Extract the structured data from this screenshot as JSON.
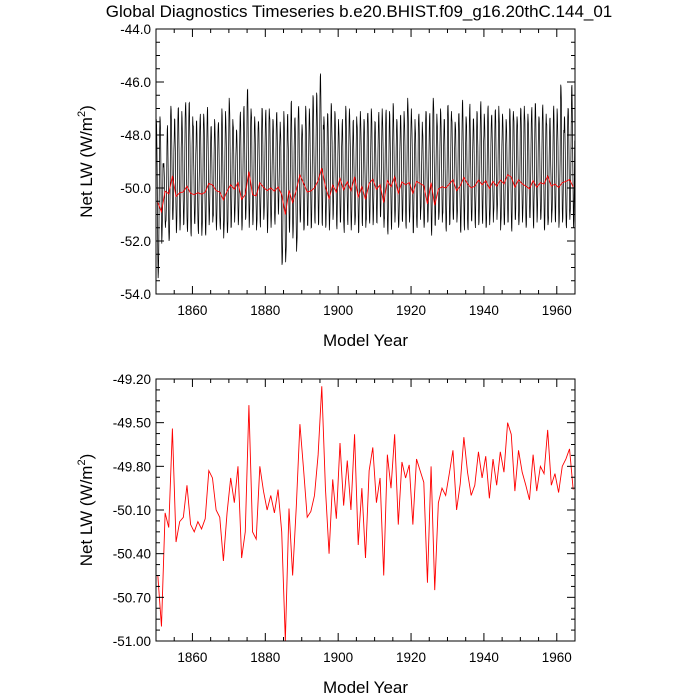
{
  "title": "Global Diagnostics Timeseries b.e20.BHIST.f09_g16.20thC.144_01",
  "colors": {
    "monthly": "#000000",
    "annual": "#ff0000"
  },
  "chart_data": [
    {
      "type": "line",
      "title": "Global Diagnostics Timeseries b.e20.BHIST.f09_g16.20thC.144_01",
      "xlabel": "Model Year",
      "ylabel_main": "Net LW (W/m",
      "ylabel_sup": "2",
      "ylabel_end": ")",
      "xlim": [
        1850,
        1965
      ],
      "ylim": [
        -54.0,
        -44.0
      ],
      "xticks": [
        1860,
        1880,
        1900,
        1920,
        1940,
        1960
      ],
      "yticks": [
        -54.0,
        -52.0,
        -50.0,
        -48.0,
        -46.0,
        -44.0
      ],
      "xtick_labels": [
        "1860",
        "1880",
        "1900",
        "1920",
        "1940",
        "1960"
      ],
      "ytick_labels": [
        "-54.0",
        "-52.0",
        "-50.0",
        "-48.0",
        "-46.0",
        "-44.0"
      ],
      "grid": false,
      "series": [
        {
          "kind": "monthly",
          "color": "#000000",
          "x_start": 1850.0,
          "x_step": 0.0833333,
          "annual_max": [
            -47.4,
            -47.3,
            -49.1,
            -47.8,
            -46.9,
            -47.4,
            -47.0,
            -47.1,
            -46.9,
            -46.8,
            -47.3,
            -47.5,
            -47.4,
            -47.2,
            -47.1,
            -47.7,
            -47.4,
            -47.6,
            -47.0,
            -47.1,
            -46.6,
            -47.4,
            -47.8,
            -47.3,
            -47.0,
            -46.3,
            -47.0,
            -47.3,
            -47.5,
            -47.0,
            -47.2,
            -47.0,
            -47.4,
            -47.2,
            -47.5,
            -47.1,
            -47.3,
            -46.8,
            -47.4,
            -47.0,
            -47.6,
            -46.9,
            -47.0,
            -46.5,
            -46.4,
            -45.8,
            -47.3,
            -47.2,
            -46.8,
            -47.1,
            -47.4,
            -47.6,
            -46.9,
            -47.0,
            -47.5,
            -47.3,
            -47.1,
            -47.4,
            -47.2,
            -47.0,
            -47.5,
            -47.3,
            -47.0,
            -47.2,
            -47.1,
            -46.8,
            -47.4,
            -47.3,
            -47.1,
            -46.6,
            -47.0,
            -47.4,
            -47.3,
            -47.5,
            -47.1,
            -47.3,
            -46.6,
            -47.2,
            -47.0,
            -47.4,
            -46.9,
            -47.1,
            -47.5,
            -47.2,
            -46.8,
            -47.3,
            -47.0,
            -47.4,
            -47.1,
            -46.9,
            -47.2,
            -47.0,
            -47.3,
            -47.1,
            -46.9,
            -47.2,
            -47.4,
            -47.0,
            -47.1,
            -47.3,
            -47.0,
            -46.9,
            -47.2,
            -47.1,
            -46.8,
            -47.3,
            -47.0,
            -47.2,
            -47.4,
            -47.1,
            -47.0,
            -46.1,
            -47.3,
            -47.0,
            -46.2
          ],
          "annual_min": [
            -53.4,
            -52.1,
            -51.5,
            -52.0,
            -51.2,
            -51.7,
            -51.6,
            -51.4,
            -51.5,
            -51.7,
            -51.3,
            -51.6,
            -51.8,
            -51.7,
            -51.4,
            -51.3,
            -51.6,
            -51.4,
            -51.9,
            -51.7,
            -51.5,
            -51.3,
            -51.4,
            -51.6,
            -51.2,
            -51.5,
            -51.4,
            -51.6,
            -51.3,
            -51.2,
            -51.7,
            -51.5,
            -51.2,
            -51.0,
            -52.9,
            -52.8,
            -51.5,
            -51.9,
            -52.4,
            -51.3,
            -51.6,
            -51.4,
            -51.5,
            -51.2,
            -51.4,
            -51.3,
            -51.5,
            -51.6,
            -51.2,
            -51.4,
            -51.3,
            -51.5,
            -51.2,
            -51.6,
            -51.4,
            -51.7,
            -51.3,
            -51.5,
            -51.2,
            -51.4,
            -51.3,
            -51.1,
            -51.5,
            -51.6,
            -51.4,
            -51.3,
            -51.5,
            -51.2,
            -51.4,
            -51.3,
            -51.7,
            -51.4,
            -51.2,
            -51.5,
            -51.3,
            -51.6,
            -51.4,
            -51.2,
            -51.3,
            -51.5,
            -51.4,
            -51.2,
            -51.3,
            -51.6,
            -51.4,
            -51.5,
            -51.2,
            -51.3,
            -51.4,
            -51.2,
            -51.5,
            -51.4,
            -51.3,
            -51.2,
            -51.6,
            -51.4,
            -51.3,
            -51.5,
            -51.2,
            -51.4,
            -51.3,
            -51.5,
            -51.1,
            -51.4,
            -51.3,
            -51.2,
            -51.5,
            -51.4,
            -51.3,
            -51.2,
            -51.5,
            -51.3,
            -51.4,
            -51.2,
            -51.5
          ]
        },
        {
          "kind": "annual",
          "color": "#ff0000",
          "x_start": 1850.5,
          "x_step": 1.0,
          "values": [
            -50.55,
            -50.9,
            -50.12,
            -50.22,
            -49.54,
            -50.32,
            -50.18,
            -50.15,
            -49.93,
            -50.2,
            -50.25,
            -50.18,
            -50.23,
            -50.16,
            -49.83,
            -49.88,
            -50.1,
            -50.15,
            -50.45,
            -50.12,
            -49.88,
            -50.05,
            -49.8,
            -50.43,
            -50.25,
            -49.38,
            -50.25,
            -50.3,
            -49.8,
            -49.97,
            -50.1,
            -50.0,
            -50.12,
            -49.96,
            -50.25,
            -51.0,
            -50.09,
            -50.55,
            -50.08,
            -49.51,
            -49.82,
            -50.15,
            -50.11,
            -50.0,
            -49.72,
            -49.25,
            -49.95,
            -50.4,
            -49.89,
            -50.16,
            -49.64,
            -50.07,
            -49.76,
            -50.1,
            -49.58,
            -50.34,
            -49.95,
            -50.43,
            -49.83,
            -49.67,
            -50.05,
            -49.88,
            -50.55,
            -49.72,
            -49.95,
            -49.58,
            -50.2,
            -49.77,
            -49.88,
            -49.79,
            -50.2,
            -49.75,
            -49.83,
            -49.91,
            -50.6,
            -49.8,
            -50.65,
            -50.05,
            -49.95,
            -50.0,
            -49.85,
            -49.69,
            -50.1,
            -49.92,
            -49.6,
            -49.84,
            -50.0,
            -49.93,
            -49.7,
            -49.88,
            -49.73,
            -50.02,
            -49.75,
            -49.93,
            -49.7,
            -49.84,
            -49.5,
            -49.58,
            -49.97,
            -49.69,
            -49.84,
            -49.93,
            -50.03,
            -49.72,
            -49.97,
            -49.8,
            -49.85,
            -49.55,
            -49.93,
            -49.85,
            -49.98,
            -49.8,
            -49.75,
            -49.68,
            -49.96
          ]
        }
      ]
    },
    {
      "type": "line",
      "xlabel": "Model Year",
      "ylabel_main": "Net LW (W/m",
      "ylabel_sup": "2",
      "ylabel_end": ")",
      "xlim": [
        1850,
        1965
      ],
      "ylim": [
        -51.0,
        -49.2
      ],
      "xticks": [
        1860,
        1880,
        1900,
        1920,
        1940,
        1960
      ],
      "yticks": [
        -51.0,
        -50.7,
        -50.4,
        -50.1,
        -49.8,
        -49.5,
        -49.2
      ],
      "xtick_labels": [
        "1860",
        "1880",
        "1900",
        "1920",
        "1940",
        "1960"
      ],
      "ytick_labels": [
        "-51.00",
        "-50.70",
        "-50.40",
        "-50.10",
        "-49.80",
        "-49.50",
        "-49.20"
      ],
      "grid": false,
      "series": [
        {
          "kind": "annual",
          "color": "#ff0000",
          "x_start": 1850.5,
          "x_step": 1.0,
          "values": [
            -50.55,
            -50.9,
            -50.12,
            -50.22,
            -49.54,
            -50.32,
            -50.18,
            -50.15,
            -49.93,
            -50.2,
            -50.25,
            -50.18,
            -50.23,
            -50.16,
            -49.83,
            -49.88,
            -50.1,
            -50.15,
            -50.45,
            -50.12,
            -49.88,
            -50.05,
            -49.8,
            -50.43,
            -50.25,
            -49.38,
            -50.25,
            -50.3,
            -49.8,
            -49.97,
            -50.1,
            -50.0,
            -50.12,
            -49.96,
            -50.25,
            -51.0,
            -50.09,
            -50.55,
            -50.08,
            -49.51,
            -49.82,
            -50.15,
            -50.11,
            -50.0,
            -49.72,
            -49.25,
            -49.95,
            -50.4,
            -49.89,
            -50.16,
            -49.64,
            -50.07,
            -49.76,
            -50.1,
            -49.58,
            -50.34,
            -49.95,
            -50.43,
            -49.83,
            -49.67,
            -50.05,
            -49.88,
            -50.55,
            -49.72,
            -49.95,
            -49.58,
            -50.2,
            -49.77,
            -49.88,
            -49.79,
            -50.2,
            -49.75,
            -49.83,
            -49.91,
            -50.6,
            -49.8,
            -50.65,
            -50.05,
            -49.95,
            -50.0,
            -49.85,
            -49.69,
            -50.1,
            -49.92,
            -49.6,
            -49.84,
            -50.0,
            -49.93,
            -49.7,
            -49.88,
            -49.73,
            -50.02,
            -49.75,
            -49.93,
            -49.7,
            -49.84,
            -49.5,
            -49.58,
            -49.97,
            -49.69,
            -49.84,
            -49.93,
            -50.03,
            -49.72,
            -49.97,
            -49.8,
            -49.85,
            -49.55,
            -49.93,
            -49.85,
            -49.98,
            -49.8,
            -49.75,
            -49.68,
            -49.96
          ]
        }
      ]
    }
  ]
}
